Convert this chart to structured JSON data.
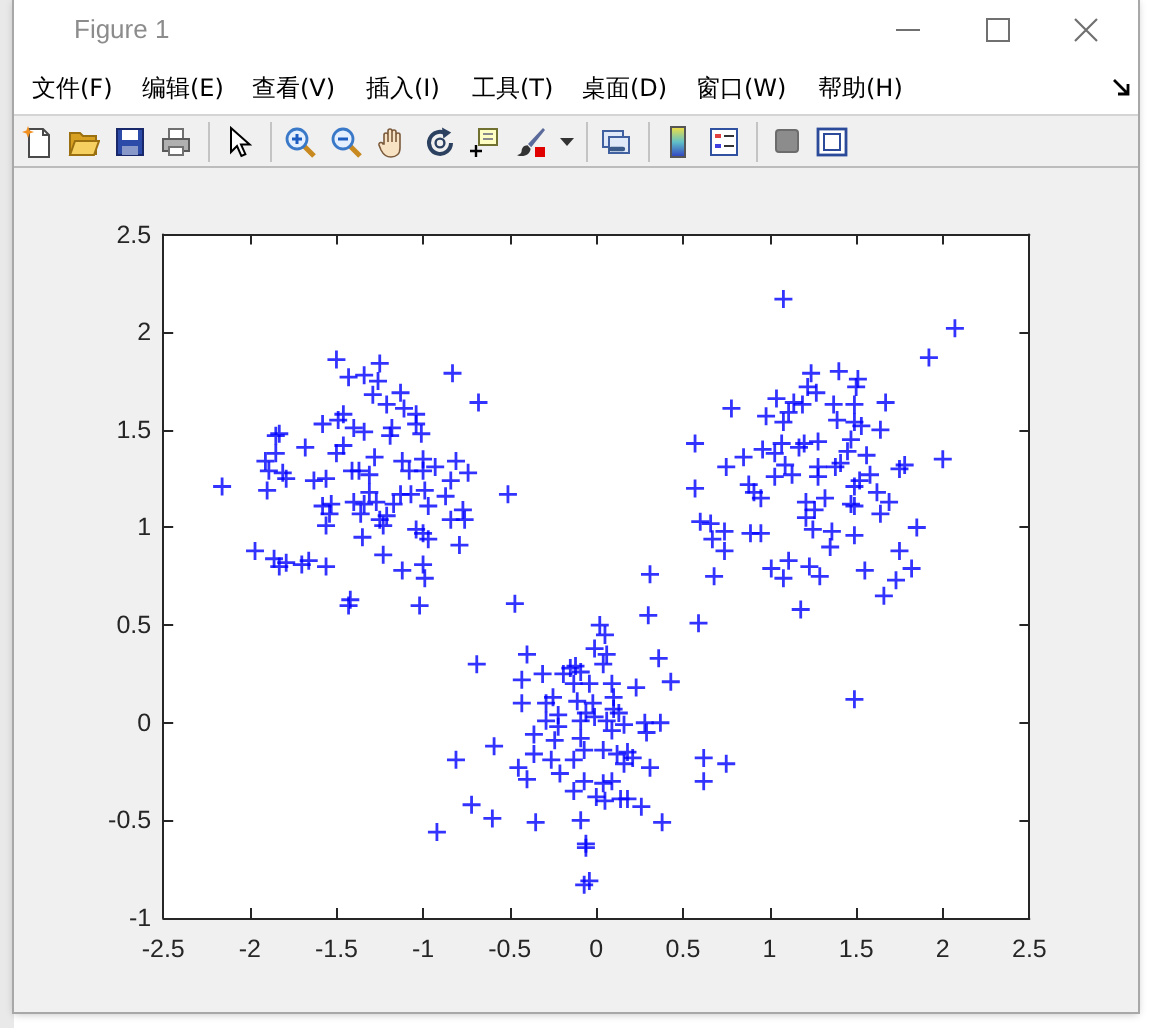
{
  "chart_data": {
    "type": "scatter",
    "title": "Figure 1",
    "annotations": [
      "文件(F)",
      "编辑(E)",
      "查看(V)",
      "插入(I)",
      "工具(T)",
      "桌面(D)",
      "窗口(W)",
      "帮助(H)"
    ],
    "color": "#0000ff",
    "marker": "cross",
    "xlim": [
      -2.5,
      2.5
    ],
    "ylim": [
      -1,
      2.5
    ],
    "xticks": [
      -2.5,
      -2,
      -1.5,
      -1,
      -0.5,
      0,
      0.5,
      1,
      1.5,
      2,
      2.5
    ],
    "yticks": [
      -1,
      -0.5,
      0,
      0.5,
      1,
      1.5,
      2,
      2.5
    ],
    "x": [
      -1.5,
      -1.25,
      -1.43,
      -1.34,
      -1.26,
      -0.83,
      -1.29,
      -1.13,
      -0.68,
      -1.21,
      -1.11,
      -1.04,
      -1.58,
      -1.49,
      -1.46,
      -1.4,
      -1.34,
      -1.18,
      -1.19,
      -1.04,
      -1.01,
      -1.83,
      -1.85,
      -1.68,
      -1.46,
      -1.5,
      -1.85,
      -1.91,
      -1.28,
      -1.12,
      -1.0,
      -0.81,
      -1.89,
      -1.81,
      -1.79,
      -1.63,
      -1.56,
      -1.41,
      -1.37,
      -1.31,
      -1.08,
      -1.0,
      -0.93,
      -0.74,
      -0.84,
      -2.16,
      -1.9,
      -1.31,
      -1.13,
      -1.07,
      -0.99,
      -0.87,
      -0.51,
      -1.58,
      -1.53,
      -1.4,
      -1.34,
      -1.27,
      -1.17,
      -0.97,
      -1.54,
      -1.36,
      -1.25,
      -1.21,
      -0.77,
      -0.76,
      -0.84,
      -1.56,
      -1.23,
      -1.04,
      -1.0,
      -0.97,
      -1.35,
      -0.79,
      -1.97,
      -1.86,
      -1.79,
      -1.83,
      -1.7,
      -1.66,
      -1.56,
      -1.23,
      -1.12,
      -1.0,
      -0.99,
      -1.42,
      -1.43,
      -1.02,
      -0.47,
      1.08,
      2.07,
      1.92,
      1.24,
      1.4,
      1.51,
      1.5,
      1.22,
      1.27,
      0.78,
      1.04,
      1.14,
      1.19,
      0.98,
      1.08,
      1.11,
      1.37,
      1.49,
      1.67,
      1.39,
      1.49,
      1.53,
      1.64,
      0.57,
      0.85,
      0.96,
      1.03,
      1.07,
      1.17,
      1.2,
      1.28,
      1.47,
      1.45,
      1.56,
      0.75,
      1.09,
      1.03,
      1.13,
      1.28,
      1.28,
      1.41,
      1.38,
      2.0,
      1.78,
      1.75,
      1.58,
      1.49,
      1.52,
      1.62,
      0.57,
      0.88,
      0.91,
      0.95,
      1.21,
      1.32,
      1.26,
      1.21,
      1.25,
      1.47,
      1.49,
      1.69,
      1.64,
      0.6,
      0.66,
      0.67,
      0.74,
      0.74,
      0.89,
      0.95,
      1.36,
      1.49,
      1.85,
      1.35,
      1.11,
      1.01,
      1.08,
      1.23,
      1.29,
      1.55,
      1.75,
      1.82,
      1.73,
      1.66,
      0.68,
      1.18,
      0.59,
      1.49,
      0.31,
      0.3,
      0.02,
      0.05,
      -0.01,
      0.06,
      0.04,
      -0.4,
      -0.69,
      0.36,
      -0.43,
      -0.31,
      -0.19,
      -0.15,
      -0.12,
      -0.09,
      -0.13,
      -0.04,
      0.09,
      0.23,
      0.43,
      -0.43,
      -0.29,
      -0.25,
      -0.11,
      -0.02,
      0.1,
      0.1,
      0.13,
      -0.06,
      -0.22,
      -0.29,
      -0.22,
      -0.09,
      -0.01,
      0.06,
      0.16,
      0.28,
      0.37,
      0.29,
      0.09,
      -0.36,
      -0.24,
      -0.09,
      -0.59,
      -0.36,
      -0.26,
      -0.13,
      -0.07,
      0.04,
      0.12,
      0.18,
      0.21,
      0.16,
      0.31,
      -0.81,
      -0.45,
      -0.4,
      -0.21,
      -0.07,
      -0.13,
      0.04,
      0.09,
      0,
      0.05,
      0.14,
      0.18,
      0.26,
      0.62,
      0.75,
      0.62,
      -0.72,
      -0.6,
      -0.35,
      -0.09,
      0.38,
      -0.92,
      -0.06,
      -0.06,
      -0.04,
      -0.07
    ],
    "values": [
      1.86,
      1.84,
      1.77,
      1.78,
      1.75,
      1.79,
      1.68,
      1.69,
      1.64,
      1.63,
      1.61,
      1.58,
      1.53,
      1.55,
      1.58,
      1.51,
      1.49,
      1.51,
      1.47,
      1.53,
      1.48,
      1.48,
      1.47,
      1.41,
      1.42,
      1.38,
      1.38,
      1.34,
      1.36,
      1.34,
      1.35,
      1.34,
      1.29,
      1.28,
      1.25,
      1.24,
      1.25,
      1.29,
      1.29,
      1.27,
      1.29,
      1.29,
      1.31,
      1.28,
      1.24,
      1.21,
      1.19,
      1.18,
      1.17,
      1.17,
      1.19,
      1.16,
      1.17,
      1.11,
      1.12,
      1.13,
      1.12,
      1.13,
      1.12,
      1.11,
      1.07,
      1.07,
      1.04,
      1.06,
      1.09,
      1.04,
      1.04,
      1.01,
      1.01,
      0.99,
      0.97,
      0.94,
      0.95,
      0.91,
      0.88,
      0.84,
      0.82,
      0.8,
      0.81,
      0.83,
      0.8,
      0.86,
      0.78,
      0.81,
      0.74,
      0.63,
      0.6,
      0.6,
      0.61,
      2.17,
      2.02,
      1.87,
      1.79,
      1.8,
      1.76,
      1.72,
      1.72,
      1.69,
      1.61,
      1.66,
      1.64,
      1.63,
      1.57,
      1.54,
      1.59,
      1.63,
      1.63,
      1.64,
      1.55,
      1.54,
      1.52,
      1.5,
      1.43,
      1.36,
      1.4,
      1.38,
      1.43,
      1.41,
      1.43,
      1.44,
      1.45,
      1.39,
      1.37,
      1.31,
      1.32,
      1.26,
      1.27,
      1.31,
      1.26,
      1.33,
      1.31,
      1.35,
      1.32,
      1.3,
      1.27,
      1.21,
      1.24,
      1.18,
      1.2,
      1.22,
      1.18,
      1.15,
      1.13,
      1.15,
      1.09,
      1.05,
      0.99,
      1.12,
      1.11,
      1.13,
      1.07,
      1.03,
      1.02,
      0.94,
      0.98,
      0.88,
      0.97,
      0.97,
      0.98,
      0.96,
      1.0,
      0.9,
      0.83,
      0.79,
      0.74,
      0.8,
      0.75,
      0.78,
      0.88,
      0.79,
      0.73,
      0.65,
      0.75,
      0.58,
      0.51,
      0.12,
      0.76,
      0.55,
      0.5,
      0.45,
      0.38,
      0.35,
      0.3,
      0.35,
      0.3,
      0.33,
      0.22,
      0.25,
      0.25,
      0.28,
      0.29,
      0.26,
      0.2,
      0.2,
      0.2,
      0.18,
      0.21,
      0.1,
      0.1,
      0.13,
      0.11,
      0.1,
      0.13,
      0.07,
      0.05,
      0.05,
      0.04,
      0.01,
      -0.02,
      0.01,
      0.03,
      0.01,
      -0.01,
      0,
      0,
      -0.05,
      -0.04,
      -0.06,
      -0.09,
      -0.08,
      -0.12,
      -0.16,
      -0.19,
      -0.19,
      -0.14,
      -0.14,
      -0.16,
      -0.15,
      -0.18,
      -0.21,
      -0.23,
      -0.19,
      -0.23,
      -0.29,
      -0.26,
      -0.3,
      -0.35,
      -0.31,
      -0.3,
      -0.38,
      -0.4,
      -0.39,
      -0.39,
      -0.43,
      -0.18,
      -0.21,
      -0.3,
      -0.42,
      -0.49,
      -0.51,
      -0.5,
      -0.51,
      -0.56,
      -0.62,
      -0.64,
      -0.81,
      -0.83
    ]
  }
}
